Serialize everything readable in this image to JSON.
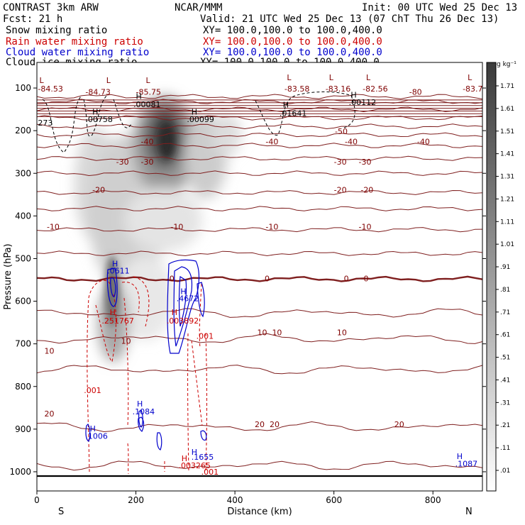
{
  "header": {
    "model": "CONTRAST  3km ARW",
    "org": "NCAR/MMM",
    "init": "Init: 00 UTC Wed 25 Dec 13",
    "fcst": "Fcst:   21 h",
    "valid": "Valid: 21 UTC Wed 25 Dec 13 (07 ChT Thu 26 Dec 13)",
    "fields": [
      {
        "name": "Snow mixing ratio",
        "xy": "XY= 100.0,100.0 to 100.0,400.0",
        "color": "#000000"
      },
      {
        "name": "Rain water mixing ratio",
        "xy": "XY= 100.0,100.0 to 100.0,400.0",
        "color": "#cc0000"
      },
      {
        "name": "Cloud water mixing ratio",
        "xy": "XY= 100.0,100.0 to 100.0,400.0",
        "color": "#0000cc"
      },
      {
        "name": "Cloud ice mixing ratio",
        "xy": "XY= 100.0,100.0 to 100.0,400.0",
        "color": "#000000"
      }
    ]
  },
  "chart_data": {
    "type": "cross-section",
    "title": "Vertical cross-section S to N",
    "xlabel": "Distance (km)",
    "ylabel": "Pressure (hPa)",
    "xlim": [
      0,
      900
    ],
    "ylim": [
      1045,
      40
    ],
    "x_ticks": [
      0,
      200,
      400,
      600,
      800
    ],
    "y_ticks": [
      100,
      200,
      300,
      400,
      500,
      600,
      700,
      800,
      900,
      1000
    ],
    "x_ends": {
      "left": "S",
      "right": "N"
    },
    "colorbar": {
      "unit": "g kg⁻¹",
      "labels": [
        "1.71",
        "1.61",
        "1.51",
        "1.41",
        "1.31",
        "1.21",
        "1.11",
        "1.01",
        ".91",
        ".81",
        ".71",
        ".61",
        ".51",
        ".41",
        ".31",
        ".21",
        ".11",
        ".01"
      ]
    },
    "temperature_contours": [
      {
        "value": -85,
        "p": 120
      },
      {
        "value": -80,
        "p": 132
      },
      {
        "value": -70,
        "p": 150
      },
      {
        "value": -60,
        "p": 170
      },
      {
        "value": -50,
        "p": 190
      },
      {
        "value": -40,
        "p": 210
      },
      {
        "value": -35,
        "p": 235
      },
      {
        "value": -30,
        "p": 265
      },
      {
        "value": -25,
        "p": 300
      },
      {
        "value": -20,
        "p": 345
      },
      {
        "value": -15,
        "p": 383
      },
      {
        "value": -10,
        "p": 432
      },
      {
        "value": -5,
        "p": 488
      },
      {
        "value": 0,
        "p": 548
      },
      {
        "value": 5,
        "p": 628
      },
      {
        "value": 10,
        "p": 688
      },
      {
        "value": 15,
        "p": 760
      },
      {
        "value": 20,
        "p": 895
      },
      {
        "value": 25,
        "p": 985
      }
    ],
    "field_labels": [
      {
        "text": "L",
        "x": 5,
        "p": 88,
        "color": "#7f0000"
      },
      {
        "text": "-84.53",
        "x": 2,
        "p": 108,
        "color": "#7f0000"
      },
      {
        "text": "L",
        "x": 140,
        "p": 88,
        "color": "#7f0000"
      },
      {
        "text": "-84.73",
        "x": 98,
        "p": 116,
        "color": "#7f0000"
      },
      {
        "text": "L",
        "x": 220,
        "p": 88,
        "color": "#7f0000"
      },
      {
        "text": "-85.75",
        "x": 200,
        "p": 116,
        "color": "#7f0000"
      },
      {
        "text": "L",
        "x": 505,
        "p": 82,
        "color": "#7f0000"
      },
      {
        "text": "-83.58",
        "x": 500,
        "p": 108,
        "color": "#7f0000"
      },
      {
        "text": "L",
        "x": 590,
        "p": 82,
        "color": "#7f0000"
      },
      {
        "text": "-83.16",
        "x": 583,
        "p": 108,
        "color": "#7f0000"
      },
      {
        "text": "L",
        "x": 665,
        "p": 82,
        "color": "#7f0000"
      },
      {
        "text": "-82.56",
        "x": 658,
        "p": 108,
        "color": "#7f0000"
      },
      {
        "text": "-80",
        "x": 752,
        "p": 116,
        "color": "#7f0000"
      },
      {
        "text": "L",
        "x": 870,
        "p": 82,
        "color": "#7f0000"
      },
      {
        "text": "-83.7",
        "x": 860,
        "p": 108,
        "color": "#7f0000"
      },
      {
        "text": "H",
        "x": 200,
        "p": 126,
        "color": "#000000"
      },
      {
        "text": ".00081",
        "x": 195,
        "p": 145,
        "color": "#000000"
      },
      {
        "text": "H",
        "x": 112,
        "p": 162,
        "color": "#000000"
      },
      {
        "text": ".00758",
        "x": 98,
        "p": 180,
        "color": "#000000"
      },
      {
        "text": "H",
        "x": 312,
        "p": 162,
        "color": "#000000"
      },
      {
        "text": ".00099",
        "x": 303,
        "p": 180,
        "color": "#000000"
      },
      {
        "text": "H",
        "x": 497,
        "p": 146,
        "color": "#000000"
      },
      {
        "text": ".01641",
        "x": 490,
        "p": 166,
        "color": "#000000"
      },
      {
        "text": "H",
        "x": 634,
        "p": 122,
        "color": "#000000"
      },
      {
        "text": ".00112",
        "x": 630,
        "p": 140,
        "color": "#000000"
      },
      {
        "text": "273",
        "x": 2,
        "p": 188,
        "color": "#000000"
      },
      {
        "text": "-50",
        "x": 602,
        "p": 208,
        "color": "#7f0000"
      },
      {
        "text": "-40",
        "x": 210,
        "p": 232,
        "color": "#7f0000"
      },
      {
        "text": "-40",
        "x": 462,
        "p": 232,
        "color": "#7f0000"
      },
      {
        "text": "-40",
        "x": 622,
        "p": 232,
        "color": "#7f0000"
      },
      {
        "text": "-40",
        "x": 768,
        "p": 232,
        "color": "#7f0000"
      },
      {
        "text": "-30",
        "x": 160,
        "p": 280,
        "color": "#7f0000"
      },
      {
        "text": "-30",
        "x": 210,
        "p": 280,
        "color": "#7f0000"
      },
      {
        "text": "-30",
        "x": 600,
        "p": 280,
        "color": "#7f0000"
      },
      {
        "text": "-30",
        "x": 650,
        "p": 280,
        "color": "#7f0000"
      },
      {
        "text": "-20",
        "x": 112,
        "p": 345,
        "color": "#7f0000"
      },
      {
        "text": "-20",
        "x": 600,
        "p": 345,
        "color": "#7f0000"
      },
      {
        "text": "-20",
        "x": 654,
        "p": 345,
        "color": "#7f0000"
      },
      {
        "text": "-10",
        "x": 20,
        "p": 432,
        "color": "#7f0000"
      },
      {
        "text": "-10",
        "x": 270,
        "p": 432,
        "color": "#7f0000"
      },
      {
        "text": "-10",
        "x": 462,
        "p": 432,
        "color": "#7f0000"
      },
      {
        "text": "-10",
        "x": 650,
        "p": 432,
        "color": "#7f0000"
      },
      {
        "text": "H",
        "x": 152,
        "p": 518,
        "color": "#0000cc"
      },
      {
        "text": ".0611",
        "x": 142,
        "p": 535,
        "color": "#0000cc"
      },
      {
        "text": "-0",
        "x": 262,
        "p": 553,
        "color": "#7f0000"
      },
      {
        "text": "0",
        "x": 460,
        "p": 553,
        "color": "#7f0000"
      },
      {
        "text": "0",
        "x": 620,
        "p": 553,
        "color": "#7f0000"
      },
      {
        "text": "0",
        "x": 660,
        "p": 553,
        "color": "#7f0000"
      },
      {
        "text": "H",
        "x": 290,
        "p": 583,
        "color": "#0000cc"
      },
      {
        "text": ".4672",
        "x": 282,
        "p": 600,
        "color": "#0000cc"
      },
      {
        "text": "H",
        "x": 147,
        "p": 632,
        "color": "#cc0000"
      },
      {
        "text": ".251767",
        "x": 131,
        "p": 652,
        "color": "#cc0000"
      },
      {
        "text": "H",
        "x": 272,
        "p": 632,
        "color": "#cc0000"
      },
      {
        "text": ".003892",
        "x": 262,
        "p": 652,
        "color": "#cc0000"
      },
      {
        "text": ".001",
        "x": 322,
        "p": 688,
        "color": "#cc0000"
      },
      {
        "text": "10",
        "x": 15,
        "p": 723,
        "color": "#7f0000"
      },
      {
        "text": "10",
        "x": 170,
        "p": 700,
        "color": "#7f0000"
      },
      {
        "text": "10",
        "x": 445,
        "p": 680,
        "color": "#7f0000"
      },
      {
        "text": "10",
        "x": 475,
        "p": 680,
        "color": "#7f0000"
      },
      {
        "text": "10",
        "x": 606,
        "p": 680,
        "color": "#7f0000"
      },
      {
        "text": ".001",
        "x": 95,
        "p": 815,
        "color": "#cc0000"
      },
      {
        "text": "20",
        "x": 15,
        "p": 870,
        "color": "#7f0000"
      },
      {
        "text": "H",
        "x": 202,
        "p": 847,
        "color": "#0000cc"
      },
      {
        "text": ".1084",
        "x": 193,
        "p": 865,
        "color": "#0000cc"
      },
      {
        "text": "20",
        "x": 440,
        "p": 895,
        "color": "#7f0000"
      },
      {
        "text": "20",
        "x": 470,
        "p": 895,
        "color": "#7f0000"
      },
      {
        "text": "20",
        "x": 722,
        "p": 895,
        "color": "#7f0000"
      },
      {
        "text": "H",
        "x": 107,
        "p": 905,
        "color": "#0000cc"
      },
      {
        "text": ".1006",
        "x": 98,
        "p": 923,
        "color": "#0000cc"
      },
      {
        "text": "H",
        "x": 312,
        "p": 960,
        "color": "#0000cc"
      },
      {
        "text": ".1655",
        "x": 312,
        "p": 972,
        "color": "#0000cc"
      },
      {
        "text": "H",
        "x": 292,
        "p": 975,
        "color": "#cc0000"
      },
      {
        "text": ".003265",
        "x": 286,
        "p": 992,
        "color": "#cc0000"
      },
      {
        "text": ".001",
        "x": 332,
        "p": 1007,
        "color": "#cc0000"
      },
      {
        "text": "H",
        "x": 848,
        "p": 970,
        "color": "#0000cc"
      },
      {
        "text": ".1087",
        "x": 845,
        "p": 988,
        "color": "#0000cc"
      }
    ]
  }
}
